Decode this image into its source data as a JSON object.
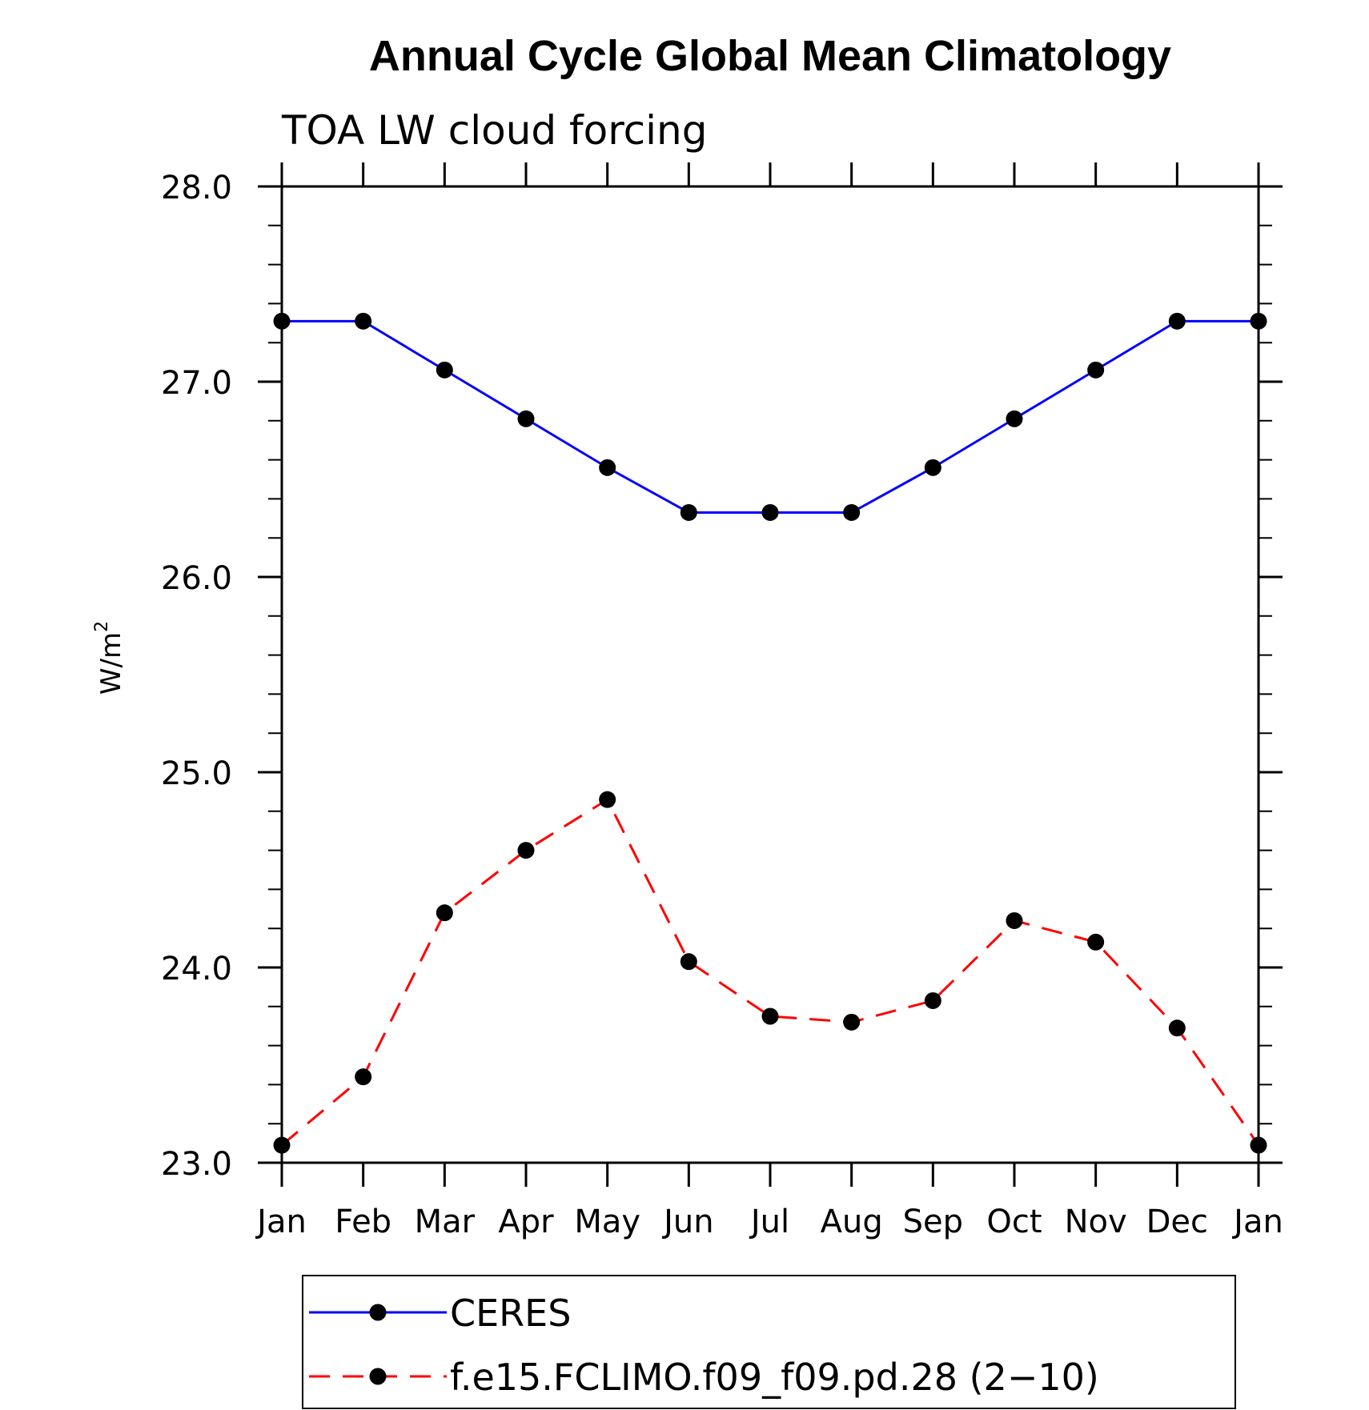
{
  "chart_data": {
    "type": "line",
    "title": "Annual Cycle Global Mean Climatology",
    "subtitle": "TOA LW cloud forcing",
    "xlabel": "",
    "ylabel": "W/m",
    "ylabel_superscript": "2",
    "categories": [
      "Jan",
      "Feb",
      "Mar",
      "Apr",
      "May",
      "Jun",
      "Jul",
      "Aug",
      "Sep",
      "Oct",
      "Nov",
      "Dec",
      "Jan"
    ],
    "ylim": [
      23.0,
      28.0
    ],
    "yticks": [
      "23.0",
      "24.0",
      "25.0",
      "26.0",
      "27.0",
      "28.0"
    ],
    "series": [
      {
        "name": "CERES",
        "color": "#0000ff",
        "style": "solid",
        "values": [
          27.31,
          27.31,
          27.06,
          26.81,
          26.56,
          26.33,
          26.33,
          26.33,
          26.56,
          26.81,
          27.06,
          27.31,
          27.31
        ]
      },
      {
        "name": "f.e15.FCLIMO.f09_f09.pd.28 (2−10)",
        "color": "#ff0000",
        "style": "dashed",
        "values": [
          23.09,
          23.44,
          24.28,
          24.6,
          24.86,
          24.03,
          23.75,
          23.72,
          23.83,
          24.24,
          24.13,
          23.69,
          23.09
        ]
      }
    ],
    "legend_position": "bottom"
  }
}
